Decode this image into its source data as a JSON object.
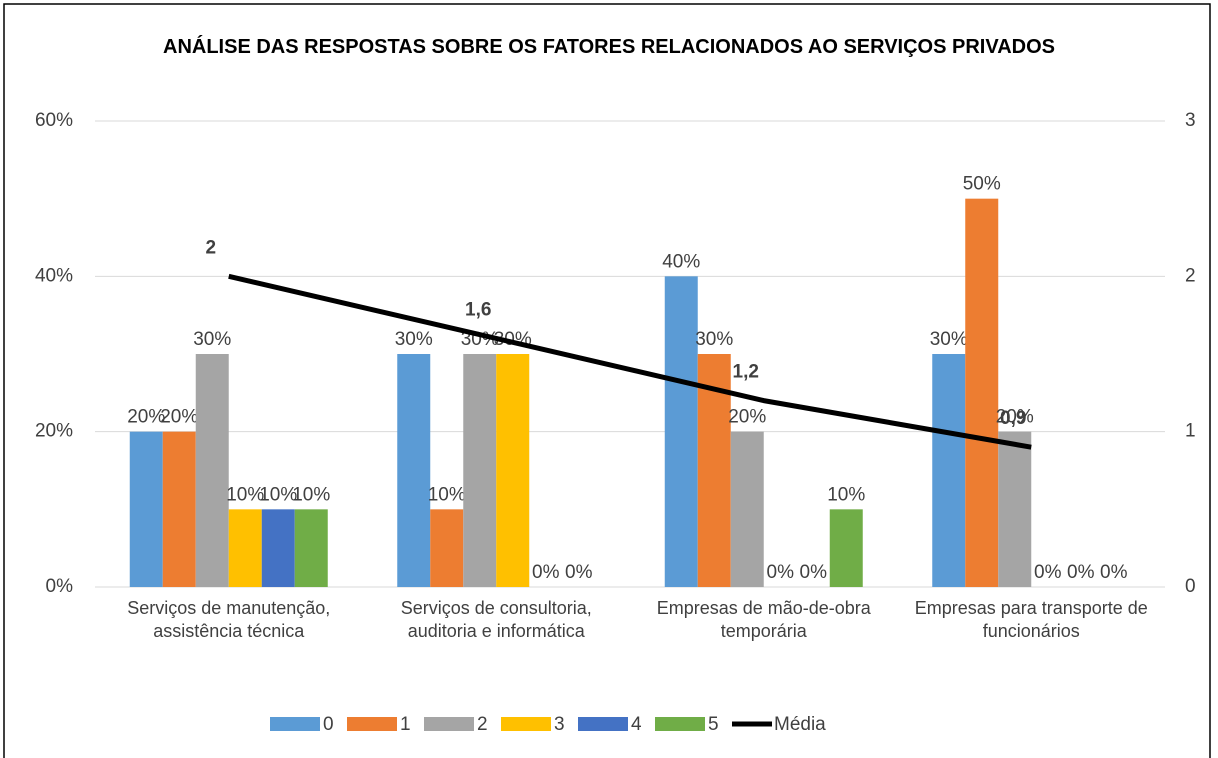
{
  "chart_data": {
    "type": "bar",
    "title": "ANÁLISE DAS RESPOSTAS SOBRE OS FATORES RELACIONADOS AO SERVIÇOS PRIVADOS",
    "categories": [
      "Serviços de manutenção, assistência técnica",
      "Serviços de consultoria, auditoria e informática",
      "Empresas de mão-de-obra temporária",
      "Empresas para transporte de funcionários"
    ],
    "series": [
      {
        "name": "0",
        "color": "#5b9bd5",
        "values": [
          20,
          30,
          40,
          30
        ],
        "value_labels": [
          "20%",
          "30%",
          "40%",
          "30%"
        ]
      },
      {
        "name": "1",
        "color": "#ed7d31",
        "values": [
          20,
          10,
          30,
          50
        ],
        "value_labels": [
          "20%",
          "10%",
          "30%",
          "50%"
        ]
      },
      {
        "name": "2",
        "color": "#a5a5a5",
        "values": [
          30,
          30,
          20,
          20
        ],
        "value_labels": [
          "30%",
          "30%",
          "20%",
          "20%"
        ]
      },
      {
        "name": "3",
        "color": "#ffc000",
        "values": [
          10,
          30,
          0,
          0
        ],
        "value_labels": [
          "10%",
          "30%",
          "0%",
          "0%"
        ]
      },
      {
        "name": "4",
        "color": "#4472c4",
        "values": [
          10,
          0,
          0,
          0
        ],
        "value_labels": [
          "10%",
          "0%",
          "0%",
          "0%"
        ]
      },
      {
        "name": "5",
        "color": "#70ad47",
        "values": [
          10,
          0,
          10,
          0
        ],
        "value_labels": [
          "10%",
          "0%",
          "10%",
          "0%"
        ]
      },
      {
        "name": "Média",
        "color": "#000000",
        "type": "line",
        "axis": "y2",
        "values": [
          2,
          1.6,
          1.2,
          0.9
        ],
        "value_labels": [
          "2",
          "1,6",
          "1,2",
          "0,9"
        ]
      }
    ],
    "ylim": [
      0,
      60
    ],
    "yticks": [
      {
        "value": 0,
        "label": "0%"
      },
      {
        "value": 20,
        "label": "20%"
      },
      {
        "value": 40,
        "label": "40%"
      },
      {
        "value": 60,
        "label": "60%"
      }
    ],
    "y2lim": [
      0,
      3
    ],
    "y2ticks": [
      0,
      1,
      2,
      3
    ],
    "grid": true,
    "legend": "bottom"
  }
}
